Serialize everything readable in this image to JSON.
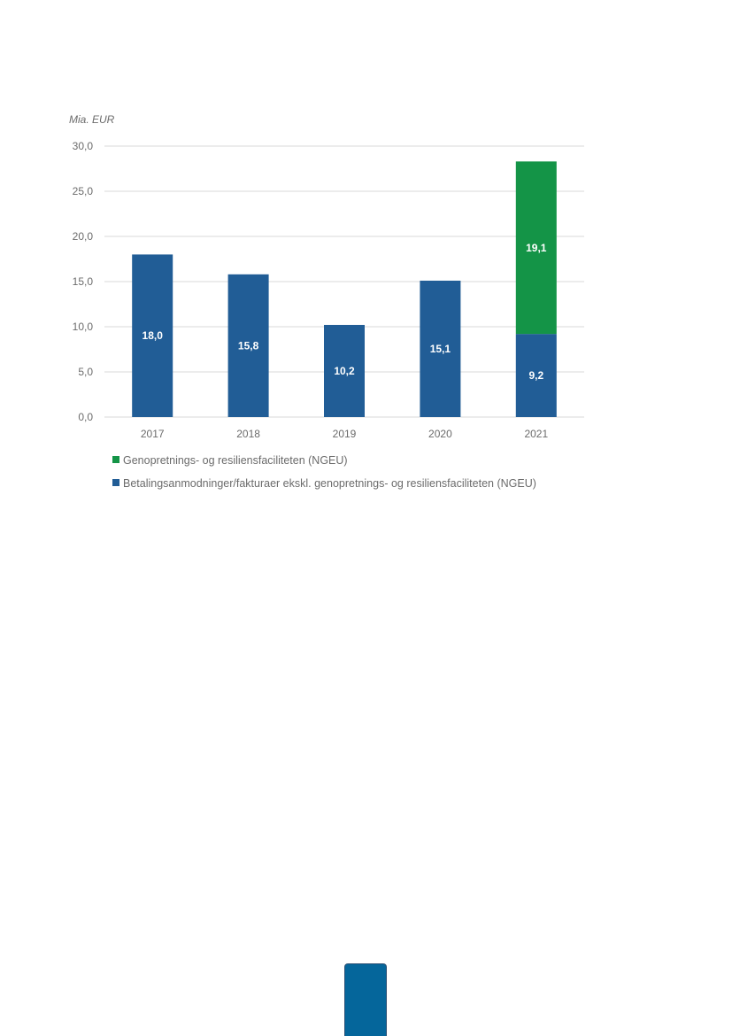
{
  "chart_data": {
    "type": "bar",
    "stacked": true,
    "unit_label": "Mia. EUR",
    "categories": [
      "2017",
      "2018",
      "2019",
      "2020",
      "2021"
    ],
    "ylim": [
      0,
      30
    ],
    "y_ticks": [
      "0,0",
      "5,0",
      "10,0",
      "15,0",
      "20,0",
      "25,0",
      "30,0"
    ],
    "y_tick_values": [
      0,
      5,
      10,
      15,
      20,
      25,
      30
    ],
    "series": [
      {
        "name": "Betalingsanmodninger/fakturaer ekskl. genopretnings- og resiliensfaciliteten (NGEU)",
        "color": "#215d96",
        "values": [
          18.0,
          15.8,
          10.2,
          15.1,
          9.2
        ],
        "labels": [
          "18,0",
          "15,8",
          "10,2",
          "15,1",
          "9,2"
        ]
      },
      {
        "name": "Genopretnings- og resiliensfaciliteten (NGEU)",
        "color": "#149447",
        "values": [
          0,
          0,
          0,
          0,
          19.1
        ],
        "labels": [
          "",
          "",
          "",
          "",
          "19,1"
        ]
      }
    ],
    "legend_order": [
      1,
      0
    ],
    "legend_position": "bottom"
  },
  "colors": {
    "page_tab": "#05669b"
  }
}
